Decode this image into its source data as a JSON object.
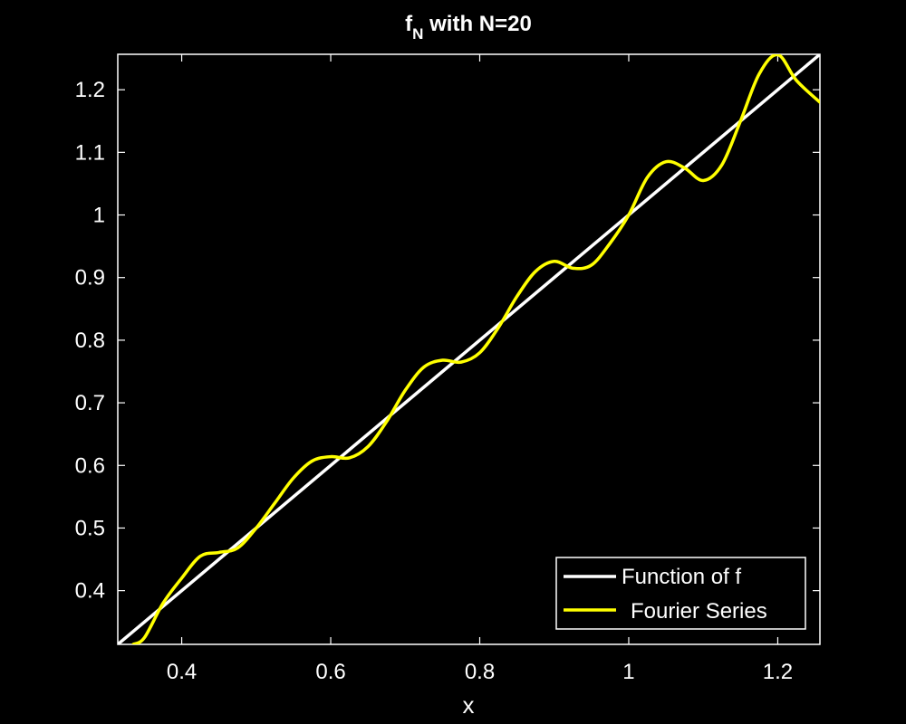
{
  "chart_data": {
    "type": "line",
    "title": "f",
    "title_subscript": "N",
    "title_rest": " with N=20",
    "xlabel": "x",
    "ylabel": "",
    "xlim": [
      0.3142,
      1.2566
    ],
    "ylim": [
      0.3142,
      1.2566
    ],
    "xticks": [
      0.4,
      0.6,
      0.8,
      1.0,
      1.2
    ],
    "xtick_labels": [
      "0.4",
      "0.6",
      "0.8",
      "1",
      "1.2"
    ],
    "yticks": [
      0.4,
      0.5,
      0.6,
      0.7,
      0.8,
      0.9,
      1.0,
      1.1,
      1.2
    ],
    "ytick_labels": [
      "0.4",
      "0.5",
      "0.6",
      "0.7",
      "0.8",
      "0.9",
      "1",
      "1.1",
      "1.2"
    ],
    "grid": false,
    "legend_position": "bottom-right",
    "series": [
      {
        "name": "Function of f",
        "color": "#ffffff",
        "x": [
          0.3142,
          1.2566
        ],
        "y": [
          0.3142,
          1.2566
        ]
      },
      {
        "name": "Fourier Series",
        "color": "#ffff00",
        "x": [
          0.335,
          0.35,
          0.375,
          0.4,
          0.425,
          0.45,
          0.475,
          0.5,
          0.525,
          0.55,
          0.575,
          0.6,
          0.625,
          0.65,
          0.675,
          0.7,
          0.725,
          0.75,
          0.775,
          0.8,
          0.825,
          0.85,
          0.875,
          0.9,
          0.925,
          0.95,
          0.975,
          1.0,
          1.025,
          1.05,
          1.075,
          1.1,
          1.125,
          1.15,
          1.175,
          1.2,
          1.225,
          1.2566
        ],
        "y": [
          0.3142,
          0.325,
          0.38,
          0.42,
          0.455,
          0.461,
          0.468,
          0.5,
          0.54,
          0.58,
          0.607,
          0.614,
          0.612,
          0.63,
          0.67,
          0.72,
          0.757,
          0.768,
          0.765,
          0.78,
          0.82,
          0.87,
          0.91,
          0.926,
          0.915,
          0.92,
          0.955,
          1.0,
          1.06,
          1.085,
          1.075,
          1.055,
          1.08,
          1.15,
          1.225,
          1.256,
          1.215,
          1.18
        ]
      }
    ]
  }
}
